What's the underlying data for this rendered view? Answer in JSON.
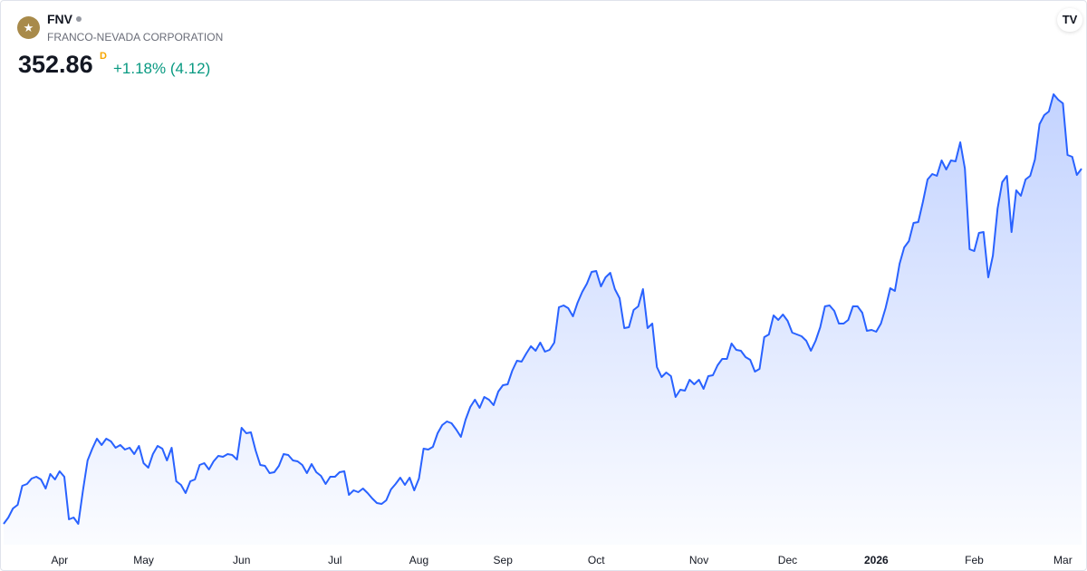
{
  "header": {
    "symbol": "FNV",
    "name": "FRANCO-NEVADA CORPORATION",
    "price": "352.86",
    "price_flag": "D",
    "change": "+1.18% (4.12)"
  },
  "chart_data": {
    "type": "area",
    "color": "#2962ff",
    "values": [
      156.9,
      160.4,
      165.4,
      167.4,
      177.9,
      178.9,
      181.9,
      182.9,
      181.4,
      176.4,
      184.4,
      181.4,
      185.9,
      182.9,
      159.4,
      160.4,
      156.9,
      175.4,
      191.9,
      198.4,
      203.9,
      200.4,
      203.9,
      202.4,
      198.9,
      200.4,
      197.9,
      198.9,
      195.4,
      199.9,
      190.4,
      187.9,
      195.4,
      199.9,
      198.4,
      191.9,
      198.9,
      180.4,
      178.4,
      173.9,
      180.4,
      181.4,
      189.4,
      190.4,
      186.9,
      191.4,
      194.4,
      193.9,
      195.4,
      194.9,
      192.4,
      209.9,
      206.9,
      207.4,
      197.4,
      189.4,
      188.9,
      184.9,
      185.4,
      188.9,
      195.4,
      194.9,
      191.9,
      191.4,
      189.4,
      184.9,
      189.9,
      185.4,
      183.4,
      178.9,
      182.9,
      182.9,
      185.4,
      185.9,
      172.9,
      175.4,
      174.4,
      176.4,
      173.9,
      170.9,
      168.4,
      167.9,
      169.9,
      175.9,
      178.9,
      182.4,
      178.4,
      182.4,
      175.4,
      181.9,
      198.4,
      197.9,
      199.4,
      206.9,
      211.4,
      213.4,
      212.4,
      208.9,
      204.9,
      214.4,
      221.4,
      225.4,
      220.9,
      226.9,
      225.4,
      222.4,
      229.9,
      233.4,
      233.9,
      241.4,
      246.9,
      246.4,
      250.9,
      254.9,
      252.4,
      256.9,
      251.9,
      252.9,
      256.9,
      276.4,
      277.4,
      275.9,
      271.4,
      278.9,
      284.9,
      289.4,
      295.9,
      296.4,
      287.9,
      292.9,
      295.4,
      286.4,
      281.4,
      264.9,
      265.4,
      274.9,
      276.9,
      286.4,
      264.9,
      267.4,
      243.4,
      237.9,
      240.4,
      238.4,
      226.9,
      230.9,
      230.4,
      236.4,
      233.9,
      236.4,
      231.4,
      238.4,
      238.9,
      244.4,
      247.9,
      247.9,
      256.4,
      252.9,
      252.4,
      248.9,
      247.4,
      240.9,
      242.4,
      259.9,
      261.4,
      271.9,
      269.4,
      272.4,
      268.9,
      262.4,
      261.4,
      260.4,
      257.9,
      252.4,
      257.9,
      265.4,
      276.9,
      277.4,
      274.4,
      267.4,
      267.4,
      269.4,
      276.9,
      276.9,
      273.4,
      263.4,
      263.9,
      262.9,
      267.4,
      275.9,
      286.9,
      285.4,
      300.4,
      309.4,
      312.9,
      322.9,
      323.4,
      334.4,
      346.9,
      349.9,
      348.9,
      357.4,
      352.4,
      357.4,
      356.9,
      367.4,
      352.9,
      308.4,
      307.4,
      317.4,
      317.9,
      292.9,
      304.9,
      330.9,
      345.4,
      348.9,
      317.9,
      340.9,
      337.9,
      346.9,
      348.9,
      357.9,
      377.4,
      382.4,
      384.4,
      393.9,
      390.9,
      388.9,
      360.4,
      359.4,
      349.4,
      352.86
    ],
    "xlim": [
      0,
      231
    ],
    "xticks": [
      {
        "value": 12,
        "label": "Apr"
      },
      {
        "value": 30,
        "label": "May"
      },
      {
        "value": 51,
        "label": "Jun"
      },
      {
        "value": 71,
        "label": "Jul"
      },
      {
        "value": 89,
        "label": "Aug"
      },
      {
        "value": 107,
        "label": "Sep"
      },
      {
        "value": 127,
        "label": "Oct"
      },
      {
        "value": 149,
        "label": "Nov"
      },
      {
        "value": 168,
        "label": "Dec"
      },
      {
        "value": 187,
        "label": "2026"
      },
      {
        "value": 208,
        "label": "Feb"
      },
      {
        "value": 227,
        "label": "Mar"
      }
    ],
    "ylim": [
      145.4,
      400.4
    ],
    "grid": false
  }
}
